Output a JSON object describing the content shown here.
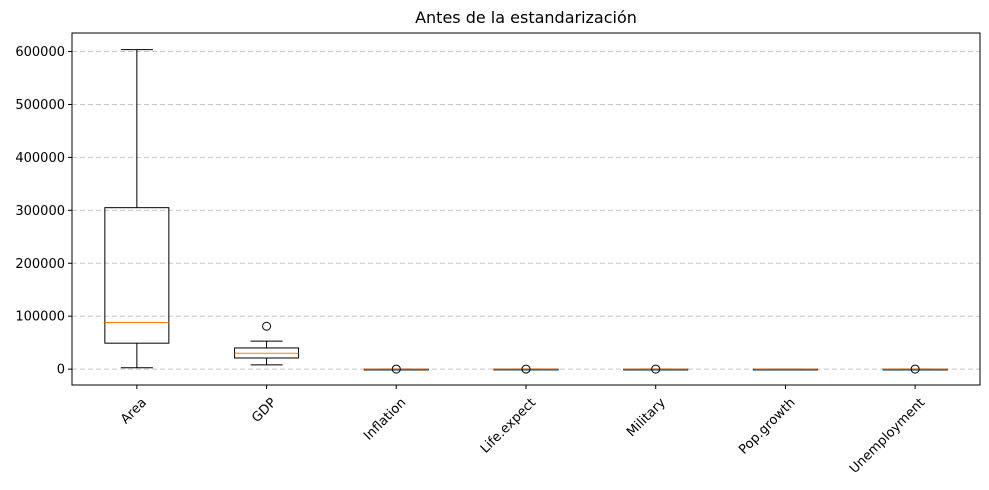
{
  "chart_data": {
    "type": "boxplot",
    "title": "Antes de la estandarización",
    "xlabel": "",
    "ylabel": "",
    "ylim": [
      -30000,
      635000
    ],
    "yticks": [
      0,
      100000,
      200000,
      300000,
      400000,
      500000,
      600000
    ],
    "ytick_labels": [
      "0",
      "100000",
      "200000",
      "300000",
      "400000",
      "500000",
      "600000"
    ],
    "grid": "y-dashed",
    "xtick_rotation": 45,
    "categories": [
      "Area",
      "GDP",
      "Inflation",
      "Life.expect",
      "Military",
      "Pop.growth",
      "Unemployment"
    ],
    "boxes": [
      {
        "min": 2586,
        "q1": 49000,
        "median": 88000,
        "q3": 305000,
        "max": 603500,
        "outliers": []
      },
      {
        "min": 8000,
        "q1": 21000,
        "median": 30000,
        "q3": 40000,
        "max": 53000,
        "outliers": [
          81000
        ]
      },
      {
        "min": 0,
        "q1": 1,
        "median": 2,
        "q3": 3,
        "max": 6,
        "outliers": [
          8
        ]
      },
      {
        "min": 70,
        "q1": 76,
        "median": 80,
        "q3": 81,
        "max": 83,
        "outliers": [
          68
        ]
      },
      {
        "min": 0.5,
        "q1": 1,
        "median": 1.3,
        "q3": 1.8,
        "max": 2.5,
        "outliers": [
          4
        ]
      },
      {
        "min": -1,
        "q1": 0,
        "median": 0.3,
        "q3": 0.7,
        "max": 1.5,
        "outliers": []
      },
      {
        "min": 3,
        "q1": 6,
        "median": 8,
        "q3": 11,
        "max": 17,
        "outliers": [
          26
        ]
      }
    ],
    "colors": {
      "box": "#000000",
      "median": "#ff7f0e",
      "grid": "#c8c8c8"
    }
  }
}
